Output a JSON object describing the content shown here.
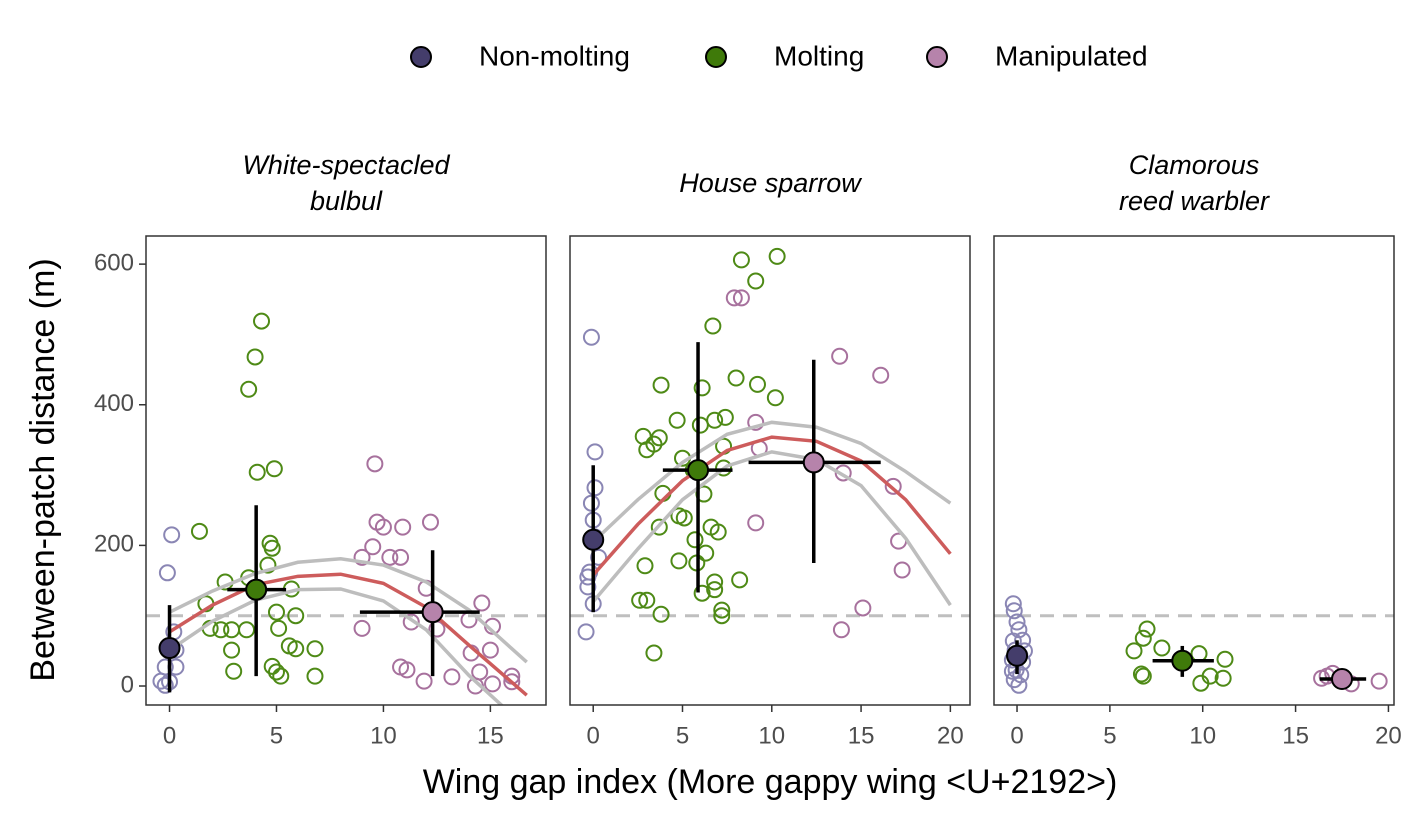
{
  "legend_title_free": true,
  "y_label": "Between-patch distance (m)",
  "x_label": "Wing gap index (More gappy wing <U+2192>)",
  "chart_data": [
    {
      "type": "scatter",
      "title": [
        "White-spectacled",
        "bulbul"
      ],
      "xlim": [
        -1.1,
        17.6
      ],
      "xticks": [
        0,
        5,
        10,
        15
      ],
      "ylim": [
        -27,
        640
      ],
      "yticks": [
        0,
        200,
        400,
        600
      ],
      "hline": 100,
      "series": [
        {
          "name": "Non-molting",
          "color": "#8a86b4",
          "mean_color": "#443d6b",
          "x": [
            0.1,
            -0.1,
            0.2,
            0.3,
            0.3,
            -0.2,
            -0.4,
            -0.2,
            0.0
          ],
          "y": [
            215,
            161,
            77,
            51,
            27,
            27,
            7,
            1,
            6
          ]
        },
        {
          "name": "Molting",
          "color": "#4e8a16",
          "mean_color": "#3f7a0a",
          "x": [
            1.4,
            4.3,
            4.0,
            3.7,
            4.1,
            4.9,
            4.7,
            4.8,
            2.6,
            3.7,
            4.6,
            5.7,
            5.9,
            5.0,
            1.7,
            1.9,
            2.4,
            2.9,
            3.6,
            5.1,
            5.6,
            5.9,
            6.8,
            6.8,
            2.9,
            3.0,
            4.8,
            5.0,
            5.2
          ],
          "y": [
            220,
            519,
            468,
            422,
            304,
            309,
            203,
            196,
            148,
            154,
            172,
            138,
            100,
            105,
            117,
            82,
            80,
            80,
            80,
            82,
            57,
            53,
            53,
            14,
            51,
            21,
            28,
            20,
            14
          ]
        },
        {
          "name": "Manipulated",
          "color": "#a7719d",
          "mean_color": "#b683ab",
          "x": [
            9.6,
            9.7,
            10.0,
            10.9,
            12.2,
            9.5,
            10.3,
            10.8,
            9.0,
            9.0,
            10.8,
            11.1,
            11.3,
            12.0,
            12.5,
            11.9,
            13.2,
            14.0,
            14.1,
            14.6,
            14.5,
            15.1,
            15.0,
            14.3,
            15.1,
            16.0,
            16.0
          ],
          "y": [
            316,
            233,
            226,
            226,
            233,
            198,
            183,
            183,
            183,
            82,
            27,
            23,
            91,
            139,
            81,
            7,
            13,
            94,
            47,
            118,
            20,
            85,
            51,
            0,
            3,
            14,
            6
          ]
        }
      ],
      "means": [
        {
          "x": 0,
          "y": 54,
          "y_range": [
            -9,
            115
          ]
        },
        {
          "x": 4.05,
          "y": 137,
          "x_range": [
            2.7,
            5.45
          ],
          "y_range": [
            14,
            257
          ]
        },
        {
          "x": 12.3,
          "y": 105,
          "x_range": [
            8.9,
            14.5
          ],
          "y_range": [
            14,
            193
          ]
        }
      ],
      "fit": {
        "color": "#cd5c5c",
        "ci_color": "#bdbdbd",
        "x": [
          0,
          2,
          4,
          6,
          8,
          10,
          12,
          14,
          16.7
        ],
        "y": [
          77,
          115,
          144,
          156,
          159,
          146,
          112,
          58,
          -13
        ],
        "upper": [
          105,
          135,
          160,
          176,
          181,
          172,
          148,
          108,
          34
        ],
        "lower": [
          51,
          92,
          122,
          137,
          138,
          121,
          80,
          15,
          -60
        ]
      }
    },
    {
      "type": "scatter",
      "title": [
        "House sparrow"
      ],
      "xlim": [
        -1.3,
        21.1
      ],
      "xticks": [
        0,
        5,
        10,
        15,
        20
      ],
      "ylim": [
        -27,
        640
      ],
      "yticks": [
        0,
        200,
        400,
        600
      ],
      "hline": 100,
      "series": [
        {
          "name": "Non-molting",
          "color": "#8a86b4",
          "mean_color": "#443d6b",
          "x": [
            -0.1,
            0.1,
            0.1,
            -0.1,
            0.0,
            0.1,
            0.3,
            -0.2,
            -0.3,
            -0.3,
            0.0,
            -0.4
          ],
          "y": [
            496,
            333,
            282,
            260,
            236,
            212,
            183,
            162,
            155,
            141,
            117,
            77
          ]
        },
        {
          "name": "Molting",
          "color": "#4e8a16",
          "mean_color": "#3f7a0a",
          "x": [
            10.3,
            8.3,
            9.1,
            6.7,
            3.8,
            8.0,
            9.2,
            6.1,
            10.2,
            7.4,
            6.8,
            4.7,
            6.0,
            2.8,
            3.7,
            3.4,
            3.0,
            7.3,
            5.0,
            5.6,
            7.3,
            3.9,
            6.2,
            4.8,
            5.1,
            3.7,
            6.6,
            7.0,
            5.7,
            6.3,
            4.8,
            5.8,
            2.9,
            8.2,
            6.8,
            6.8,
            6.1,
            2.6,
            3.0,
            3.8,
            7.2,
            7.2,
            3.4
          ],
          "y": [
            611,
            606,
            576,
            512,
            428,
            438,
            429,
            424,
            410,
            382,
            378,
            378,
            371,
            355,
            353,
            344,
            336,
            341,
            324,
            307,
            310,
            274,
            273,
            242,
            239,
            226,
            226,
            219,
            208,
            189,
            178,
            175,
            171,
            151,
            148,
            137,
            132,
            122,
            122,
            102,
            108,
            100,
            47
          ]
        },
        {
          "name": "Manipulated",
          "color": "#a7719d",
          "mean_color": "#b683ab",
          "x": [
            7.9,
            8.3,
            13.8,
            16.1,
            9.1,
            9.3,
            9.1,
            14.0,
            16.8,
            17.1,
            17.3,
            15.1,
            13.9
          ],
          "y": [
            552,
            552,
            469,
            442,
            375,
            338,
            232,
            303,
            284,
            206,
            165,
            111,
            80
          ]
        }
      ],
      "means": [
        {
          "x": 0,
          "y": 208,
          "y_range": [
            105,
            314
          ]
        },
        {
          "x": 5.87,
          "y": 307,
          "x_range": [
            3.9,
            7.8
          ],
          "y_range": [
            133,
            489
          ]
        },
        {
          "x": 12.35,
          "y": 318,
          "x_range": [
            8.7,
            16.1
          ],
          "y_range": [
            175,
            464
          ]
        }
      ],
      "fit": {
        "color": "#cd5c5c",
        "ci_color": "#bdbdbd",
        "x": [
          0,
          2.5,
          5,
          7.5,
          10,
          12.5,
          15,
          17.5,
          20
        ],
        "y": [
          158,
          230,
          292,
          335,
          354,
          348,
          320,
          265,
          188
        ],
        "upper": [
          205,
          265,
          318,
          358,
          375,
          368,
          345,
          305,
          260
        ],
        "lower": [
          120,
          195,
          265,
          313,
          333,
          322,
          285,
          210,
          115
        ]
      }
    },
    {
      "type": "scatter",
      "title": [
        "Clamorous",
        "reed warbler"
      ],
      "xlim": [
        -1.24,
        20.3
      ],
      "xticks": [
        0,
        5,
        10,
        15,
        20
      ],
      "ylim": [
        -27,
        640
      ],
      "yticks": [
        0,
        200,
        400,
        600
      ],
      "hline": 100,
      "series": [
        {
          "name": "Non-molting",
          "color": "#8a86b4",
          "mean_color": "#443d6b",
          "x": [
            -0.2,
            -0.15,
            0.0,
            0.1,
            -0.2,
            0.3,
            -0.1,
            0.15,
            -0.25,
            0.3,
            -0.05,
            0.2,
            -0.15,
            0.1,
            -0.25,
            0.4
          ],
          "y": [
            117,
            107,
            91,
            80,
            64,
            65,
            51,
            44,
            37,
            34,
            23,
            16,
            9,
            1,
            21,
            50
          ]
        },
        {
          "name": "Molting",
          "color": "#4e8a16",
          "mean_color": "#3f7a0a",
          "x": [
            7.0,
            6.8,
            6.3,
            7.8,
            9.8,
            11.2,
            6.8,
            6.7,
            10.4,
            11.1,
            9.9,
            8.8
          ],
          "y": [
            81,
            68,
            50,
            54,
            46,
            38,
            14,
            17,
            14,
            11,
            4,
            37
          ]
        },
        {
          "name": "Manipulated",
          "color": "#a7719d",
          "mean_color": "#b683ab",
          "x": [
            16.4,
            17.0,
            18.0,
            19.5,
            16.7
          ],
          "y": [
            11,
            18,
            3,
            7,
            14
          ]
        }
      ],
      "means": [
        {
          "x": 0,
          "y": 43,
          "y_range": [
            17,
            65
          ]
        },
        {
          "x": 8.9,
          "y": 36,
          "x_range": [
            7.3,
            10.6
          ],
          "y_range": [
            13,
            57
          ]
        },
        {
          "x": 17.5,
          "y": 10,
          "x_range": [
            16.3,
            18.8
          ]
        }
      ]
    }
  ]
}
